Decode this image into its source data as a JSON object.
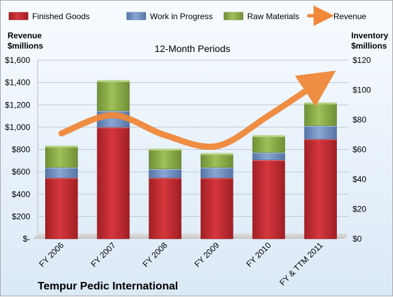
{
  "chart_data": {
    "type": "bar",
    "subtitle": "12-Month Periods",
    "company": "Tempur Pedic International",
    "y_left_label": [
      "Revenue",
      "$millions"
    ],
    "y_right_label": [
      "Inventory",
      "$millions"
    ],
    "categories": [
      "FY 2006",
      "FY 2007",
      "FY 2008",
      "FY 2009",
      "FY 2010",
      "FY & TTM 2011"
    ],
    "y_left_ticks": [
      "$-",
      "$200",
      "$400",
      "$600",
      "$800",
      "$1,000",
      "$1,200",
      "$1,400",
      "$1,600"
    ],
    "y_right_ticks": [
      "$0",
      "$20",
      "$40",
      "$60",
      "$80",
      "$100",
      "$120"
    ],
    "ylim_left": [
      0,
      1600
    ],
    "ylim_right": [
      0,
      120
    ],
    "grid": true,
    "legend_position": "top",
    "series": [
      {
        "name": "Finished Goods",
        "type": "stacked-bar",
        "axis": "right",
        "color": "#c0272d",
        "values": [
          41,
          75,
          41,
          41,
          53,
          67
        ]
      },
      {
        "name": "Work in Progress",
        "type": "stacked-bar",
        "axis": "right",
        "color": "#6e8fc0",
        "values": [
          7,
          11,
          6,
          7,
          5,
          9
        ]
      },
      {
        "name": "Raw Materials",
        "type": "stacked-bar",
        "axis": "right",
        "color": "#8cad4a",
        "values": [
          14,
          20,
          13,
          9,
          11,
          15
        ]
      },
      {
        "name": "Revenue",
        "type": "line",
        "axis": "left",
        "color": "#f0883a",
        "values": [
          945,
          1107,
          928,
          831,
          1105,
          1415
        ]
      }
    ]
  }
}
